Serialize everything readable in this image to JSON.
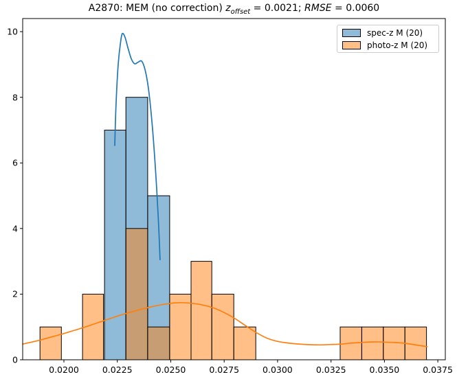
{
  "title": {
    "prefix": "A2870: MEM (no correction) ",
    "z_var": "z",
    "z_sub": "offset",
    "z_eq": " = 0.0021; ",
    "rmse_var": "RMSE",
    "rmse_eq": " = 0.0060",
    "full_text": "A2870: MEM (no correction) z_offset = 0.0021; RMSE = 0.0060"
  },
  "colors": {
    "spec_line": "#1f77b4",
    "photo_line": "#ff7f0e",
    "spec_fill_on_white": "#8fbbd9",
    "photo_fill_on_white": "#ffbf87",
    "overlap_fill_on_white": "#c79d73",
    "axes_frame": "#000000",
    "legend_border": "#cccccc"
  },
  "chart_data": {
    "type": "bar",
    "subtype": "overlaid-histograms-with-kde",
    "title": "A2870: MEM (no correction) z_offset = 0.0021; RMSE = 0.0060",
    "xlabel": "",
    "ylabel": "",
    "grid": false,
    "legend_position": "upper right",
    "xlim": [
      0.01807,
      0.03785
    ],
    "ylim": [
      0,
      10.4
    ],
    "xticks": [
      {
        "v": 0.02,
        "label": "0.0200"
      },
      {
        "v": 0.0225,
        "label": "0.0225"
      },
      {
        "v": 0.025,
        "label": "0.0250"
      },
      {
        "v": 0.0275,
        "label": "0.0275"
      },
      {
        "v": 0.03,
        "label": "0.0300"
      },
      {
        "v": 0.0325,
        "label": "0.0325"
      },
      {
        "v": 0.035,
        "label": "0.0350"
      },
      {
        "v": 0.0375,
        "label": "0.0375"
      }
    ],
    "yticks": [
      {
        "v": 0,
        "label": "0"
      },
      {
        "v": 2,
        "label": "2"
      },
      {
        "v": 4,
        "label": "4"
      },
      {
        "v": 6,
        "label": "6"
      },
      {
        "v": 8,
        "label": "8"
      },
      {
        "v": 10,
        "label": "10"
      }
    ],
    "series": [
      {
        "name": "spec-z M (20)",
        "n_points": 20,
        "color": "#1f77b4",
        "fill_hex": "#8fbbd9",
        "fill_alpha": 0.5,
        "bar_name": "spec-z-histogram-bar",
        "kde_name": "spec-z-kde-curve",
        "bars": [
          {
            "x0": 0.0219,
            "x1": 0.0229,
            "count": 7
          },
          {
            "x0": 0.0229,
            "x1": 0.02392,
            "count": 8
          },
          {
            "x0": 0.02392,
            "x1": 0.02495,
            "count": 5
          }
        ],
        "kde": [
          [
            0.02238,
            6.53
          ],
          [
            0.02244,
            7.8
          ],
          [
            0.02254,
            9.0
          ],
          [
            0.02264,
            9.62
          ],
          [
            0.02273,
            9.94
          ],
          [
            0.02286,
            9.83
          ],
          [
            0.02299,
            9.52
          ],
          [
            0.02315,
            9.18
          ],
          [
            0.02331,
            9.02
          ],
          [
            0.02347,
            9.07
          ],
          [
            0.02364,
            9.1
          ],
          [
            0.0238,
            8.83
          ],
          [
            0.02396,
            8.25
          ],
          [
            0.02412,
            7.25
          ],
          [
            0.02428,
            5.85
          ],
          [
            0.02441,
            4.4
          ],
          [
            0.0245,
            3.05
          ]
        ]
      },
      {
        "name": "photo-z M (20)",
        "n_points": 20,
        "color": "#ff7f0e",
        "fill_hex": "#ffbf87",
        "fill_alpha": 0.5,
        "bar_name": "photo-z-histogram-bar",
        "kde_name": "photo-z-kde-curve",
        "bars": [
          {
            "x0": 0.01888,
            "x1": 0.01988,
            "count": 1
          },
          {
            "x0": 0.02087,
            "x1": 0.02185,
            "count": 2
          },
          {
            "x0": 0.0229,
            "x1": 0.02392,
            "count": 4
          },
          {
            "x0": 0.02392,
            "x1": 0.02495,
            "count": 1
          },
          {
            "x0": 0.02495,
            "x1": 0.02595,
            "count": 2
          },
          {
            "x0": 0.02595,
            "x1": 0.02692,
            "count": 3
          },
          {
            "x0": 0.02692,
            "x1": 0.02795,
            "count": 2
          },
          {
            "x0": 0.02795,
            "x1": 0.02898,
            "count": 1
          },
          {
            "x0": 0.03293,
            "x1": 0.03394,
            "count": 1
          },
          {
            "x0": 0.03394,
            "x1": 0.03495,
            "count": 1
          },
          {
            "x0": 0.03495,
            "x1": 0.03596,
            "count": 1
          },
          {
            "x0": 0.03596,
            "x1": 0.03697,
            "count": 1
          }
        ],
        "kde": [
          [
            0.01807,
            0.48
          ],
          [
            0.0185,
            0.54
          ],
          [
            0.019,
            0.62
          ],
          [
            0.0195,
            0.71
          ],
          [
            0.02,
            0.8
          ],
          [
            0.0205,
            0.9
          ],
          [
            0.021,
            1.0
          ],
          [
            0.0215,
            1.11
          ],
          [
            0.022,
            1.22
          ],
          [
            0.0225,
            1.33
          ],
          [
            0.023,
            1.43
          ],
          [
            0.0235,
            1.52
          ],
          [
            0.024,
            1.6
          ],
          [
            0.0245,
            1.67
          ],
          [
            0.025,
            1.72
          ],
          [
            0.0255,
            1.74
          ],
          [
            0.026,
            1.72
          ],
          [
            0.0265,
            1.67
          ],
          [
            0.027,
            1.58
          ],
          [
            0.0275,
            1.44
          ],
          [
            0.028,
            1.26
          ],
          [
            0.0285,
            1.04
          ],
          [
            0.029,
            0.83
          ],
          [
            0.0295,
            0.66
          ],
          [
            0.03,
            0.56
          ],
          [
            0.0305,
            0.51
          ],
          [
            0.031,
            0.48
          ],
          [
            0.0315,
            0.46
          ],
          [
            0.032,
            0.455
          ],
          [
            0.0325,
            0.465
          ],
          [
            0.033,
            0.48
          ],
          [
            0.0335,
            0.51
          ],
          [
            0.034,
            0.53
          ],
          [
            0.0345,
            0.545
          ],
          [
            0.035,
            0.54
          ],
          [
            0.0355,
            0.525
          ],
          [
            0.036,
            0.5
          ],
          [
            0.0365,
            0.45
          ],
          [
            0.037,
            0.4
          ]
        ]
      }
    ]
  }
}
